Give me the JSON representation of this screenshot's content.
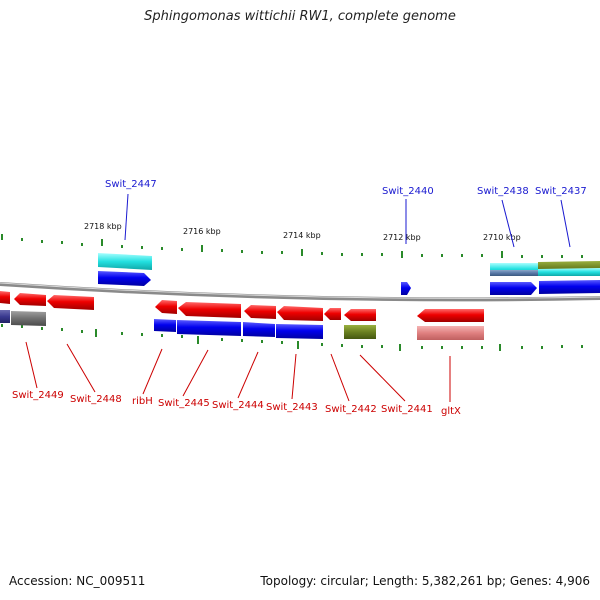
{
  "title": "Sphingomonas wittichii RW1, complete genome",
  "footer": {
    "accession": "Accession: NC_009511",
    "summary": "Topology: circular; Length: 5,382,261 bp; Genes: 4,906"
  },
  "colors": {
    "backbone": "#8a8a8a",
    "tick": "#2a8a2a",
    "label_blue": "#1a1ad0",
    "label_red": "#cc0000"
  },
  "scale_labels": [
    "2718 kbp",
    "2716 kbp",
    "2714 kbp",
    "2712 kbp",
    "2710 kbp"
  ],
  "genes": [
    {
      "name": "Swit_2447",
      "label_color": "blue"
    },
    {
      "name": "Swit_2440",
      "label_color": "blue"
    },
    {
      "name": "Swit_2438",
      "label_color": "blue"
    },
    {
      "name": "Swit_2437",
      "label_color": "blue"
    },
    {
      "name": "Swit_2449",
      "label_color": "red"
    },
    {
      "name": "Swit_2448",
      "label_color": "red"
    },
    {
      "name": "ribH",
      "label_color": "red"
    },
    {
      "name": "Swit_2445",
      "label_color": "red"
    },
    {
      "name": "Swit_2444",
      "label_color": "red"
    },
    {
      "name": "Swit_2443",
      "label_color": "red"
    },
    {
      "name": "Swit_2442",
      "label_color": "red"
    },
    {
      "name": "Swit_2441",
      "label_color": "red"
    },
    {
      "name": "gltX",
      "label_color": "red"
    }
  ]
}
